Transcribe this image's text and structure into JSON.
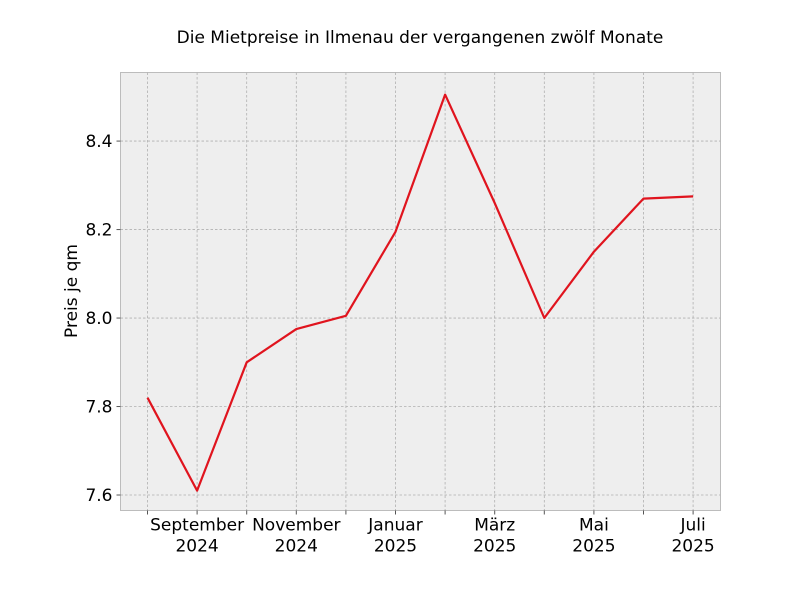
{
  "chart_data": {
    "type": "line",
    "title": "Die Mietpreise in Ilmenau der vergangenen zwölf Monate",
    "xlabel": "",
    "ylabel": "Preis je qm",
    "x": [
      "2024-08",
      "2024-09",
      "2024-10",
      "2024-11",
      "2024-12",
      "2025-01",
      "2025-02",
      "2025-03",
      "2025-04",
      "2025-05",
      "2025-06",
      "2025-07"
    ],
    "series": [
      {
        "values": [
          7.82,
          7.61,
          7.9,
          7.975,
          8.005,
          8.195,
          8.505,
          8.26,
          8.0,
          8.15,
          8.27,
          8.275
        ],
        "color": "#e0141e"
      }
    ],
    "ylim": [
      7.565,
      8.555
    ],
    "yticks": [
      7.6,
      7.8,
      8.0,
      8.2,
      8.4
    ],
    "ytick_labels": [
      "7.6",
      "7.8",
      "8.0",
      "8.2",
      "8.4"
    ],
    "xtick_labels": [
      {
        "x": "2024-09",
        "line1": "September",
        "line2": "2024"
      },
      {
        "x": "2024-11",
        "line1": "November",
        "line2": "2024"
      },
      {
        "x": "2025-01",
        "line1": "Januar",
        "line2": "2025"
      },
      {
        "x": "2025-03",
        "line1": "März",
        "line2": "2025"
      },
      {
        "x": "2025-05",
        "line1": "Mai",
        "line2": "2025"
      },
      {
        "x": "2025-07",
        "line1": "Juli",
        "line2": "2025"
      }
    ],
    "grid": true,
    "background": "#eeeeee"
  }
}
